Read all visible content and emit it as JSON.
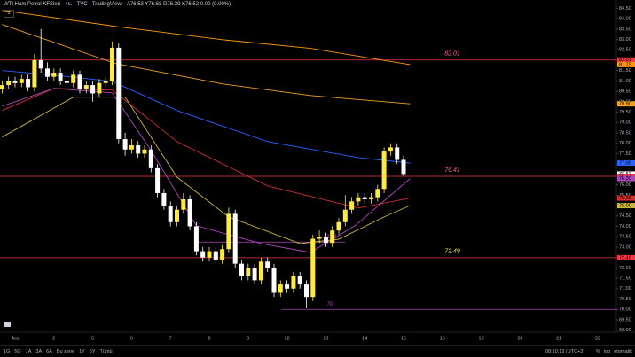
{
  "header": {
    "title": "WTI Ham Petrol KFSleri · 4s. · TVC · TradingView",
    "ohlc": "A76.53 Y76.68 D76.39 K76.52 0.00 (0.00%)",
    "badge": "3"
  },
  "chart_data": {
    "type": "candlestick",
    "categories": [
      null,
      null,
      "Ara",
      null,
      null,
      null,
      null,
      null,
      "2",
      null,
      null,
      null,
      null,
      null,
      "5",
      null,
      null,
      null,
      null,
      null,
      "6",
      null,
      null,
      null,
      null,
      null,
      "7",
      null,
      null,
      null,
      null,
      null,
      "8",
      null,
      null,
      null,
      null,
      null,
      "9",
      null,
      null,
      null,
      null,
      null,
      "12",
      null,
      null,
      null,
      null,
      null,
      "13",
      null,
      null,
      null,
      null,
      null,
      "14",
      null,
      null,
      null,
      null,
      null,
      "15",
      null,
      null,
      null,
      null,
      null,
      "16",
      null,
      null,
      null,
      null,
      null,
      "19",
      null,
      null,
      null,
      null,
      null,
      "20",
      null,
      null,
      null,
      null,
      null,
      "21",
      null,
      null,
      null,
      null,
      null,
      "22"
    ],
    "open": [
      80.6,
      80.8,
      81.0,
      80.9,
      81.1,
      80.7,
      82.0,
      81.6,
      81.2,
      81.4,
      81.0,
      80.9,
      81.3,
      80.6,
      80.8,
      80.4,
      80.9,
      81.0,
      82.6,
      78.2,
      77.7,
      77.9,
      77.5,
      77.7,
      76.8,
      75.6,
      75.0,
      74.2,
      74.8,
      75.3,
      74.0,
      72.8,
      72.5,
      72.8,
      72.4,
      72.9,
      74.6,
      72.2,
      71.6,
      72.0,
      71.4,
      72.3,
      72.0,
      70.8,
      71.2,
      71.0,
      71.6,
      71.2,
      70.6,
      73.4,
      73.5,
      73.2,
      73.8,
      74.2,
      74.8,
      75.2,
      75.4,
      75.3,
      75.4,
      75.8,
      77.6,
      77.8,
      77.2,
      null,
      null,
      null,
      null,
      null,
      null,
      null,
      null,
      null,
      null,
      null,
      null,
      null,
      null,
      null,
      null,
      null,
      null,
      null,
      null,
      null,
      null,
      null,
      null,
      null,
      null,
      null,
      null,
      null,
      null
    ],
    "high": [
      81.0,
      81.2,
      81.2,
      81.3,
      81.3,
      82.3,
      83.5,
      81.9,
      81.6,
      81.6,
      81.2,
      81.5,
      81.5,
      81.0,
      81.0,
      81.1,
      81.2,
      82.9,
      82.8,
      78.5,
      78.2,
      78.1,
      77.9,
      77.9,
      77.0,
      75.8,
      75.2,
      75.0,
      75.6,
      75.5,
      74.2,
      73.0,
      73.0,
      73.0,
      73.1,
      74.9,
      74.8,
      72.4,
      72.2,
      72.2,
      72.5,
      72.5,
      72.2,
      71.4,
      71.4,
      71.8,
      71.8,
      71.4,
      73.6,
      73.8,
      73.7,
      74.0,
      74.4,
      75.5,
      75.4,
      75.6,
      75.6,
      75.6,
      76.0,
      77.8,
      78.0,
      78.0,
      77.4,
      null,
      null,
      null,
      null,
      null,
      null,
      null,
      null,
      null,
      null,
      null,
      null,
      null,
      null,
      null,
      null,
      null,
      null,
      null,
      null,
      null,
      null,
      null,
      null,
      null,
      null,
      null,
      null,
      null,
      null
    ],
    "low": [
      80.4,
      80.6,
      80.7,
      80.7,
      80.5,
      80.5,
      81.4,
      81.0,
      81.0,
      80.8,
      80.7,
      80.7,
      80.4,
      80.4,
      80.0,
      80.2,
      80.7,
      80.8,
      78.0,
      77.4,
      77.5,
      77.3,
      77.3,
      76.6,
      75.4,
      74.8,
      74.0,
      74.0,
      74.6,
      73.8,
      72.6,
      72.3,
      72.3,
      72.2,
      72.2,
      72.7,
      72.0,
      71.4,
      71.4,
      71.2,
      71.2,
      71.8,
      70.6,
      70.6,
      70.8,
      70.8,
      71.0,
      70.05,
      70.4,
      73.2,
      73.0,
      73.0,
      73.6,
      74.0,
      74.6,
      75.0,
      75.1,
      75.1,
      75.2,
      75.6,
      77.4,
      77.0,
      76.4,
      null,
      null,
      null,
      null,
      null,
      null,
      null,
      null,
      null,
      null,
      null,
      null,
      null,
      null,
      null,
      null,
      null,
      null,
      null,
      null,
      null,
      null,
      null,
      null,
      null,
      null,
      null,
      null,
      null,
      null
    ],
    "close": [
      80.8,
      81.0,
      80.9,
      81.1,
      80.7,
      82.0,
      81.6,
      81.2,
      81.4,
      81.0,
      80.9,
      81.3,
      80.6,
      80.8,
      80.4,
      80.9,
      81.0,
      82.6,
      78.2,
      77.7,
      77.9,
      77.5,
      77.7,
      76.8,
      75.6,
      75.0,
      74.2,
      74.8,
      75.3,
      74.0,
      72.8,
      72.5,
      72.8,
      72.4,
      72.9,
      74.6,
      72.2,
      71.6,
      72.0,
      71.4,
      72.3,
      72.0,
      70.8,
      71.2,
      71.0,
      71.6,
      71.2,
      70.6,
      73.4,
      73.5,
      73.2,
      73.8,
      74.2,
      74.8,
      75.2,
      75.4,
      75.3,
      75.4,
      75.8,
      77.6,
      77.8,
      77.2,
      76.52,
      null,
      null,
      null,
      null,
      null,
      null,
      null,
      null,
      null,
      null,
      null,
      null,
      null,
      null,
      null,
      null,
      null,
      null,
      null,
      null,
      null,
      null,
      null,
      null,
      null,
      null,
      null,
      null,
      null,
      null
    ],
    "up_color": "#ffeb3b",
    "down_color": "#ffffff",
    "ylim": [
      68.9,
      84.9
    ],
    "yticks": [
      {
        "value": 69,
        "label": "69.00"
      },
      {
        "value": 69.5,
        "label": "69.50"
      },
      {
        "value": 70,
        "label": "70.00"
      },
      {
        "value": 70.5,
        "label": "70.50"
      },
      {
        "value": 71,
        "label": "71.00"
      },
      {
        "value": 71.5,
        "label": "71.50"
      },
      {
        "value": 72,
        "label": "72.00"
      },
      {
        "value": 72.5,
        "label": "72.50"
      },
      {
        "value": 73,
        "label": "73.00"
      },
      {
        "value": 73.5,
        "label": "73.50"
      },
      {
        "value": 74,
        "label": "74.00"
      },
      {
        "value": 74.5,
        "label": "74.50"
      },
      {
        "value": 75,
        "label": "75.00"
      },
      {
        "value": 75.5,
        "label": "75.50"
      },
      {
        "value": 76,
        "label": "76.00"
      },
      {
        "value": 76.5,
        "label": "76.50"
      },
      {
        "value": 77,
        "label": "77.00"
      },
      {
        "value": 77.5,
        "label": "77.50"
      },
      {
        "value": 78,
        "label": "78.00"
      },
      {
        "value": 78.5,
        "label": "78.50"
      },
      {
        "value": 79,
        "label": "79.00"
      },
      {
        "value": 79.5,
        "label": "79.50"
      },
      {
        "value": 80,
        "label": "80.00"
      },
      {
        "value": 80.5,
        "label": "80.50"
      },
      {
        "value": 81,
        "label": "81.00"
      },
      {
        "value": 81.5,
        "label": "81.50"
      },
      {
        "value": 82,
        "label": "82.00"
      },
      {
        "value": 82.5,
        "label": "82.50"
      },
      {
        "value": 83,
        "label": "83.00"
      },
      {
        "value": 83.5,
        "label": "83.50"
      },
      {
        "value": 84,
        "label": "84.00"
      },
      {
        "value": 84.5,
        "label": "84.50"
      }
    ],
    "grid": false,
    "lines": [
      {
        "color": "#ff9800",
        "x": [
          0,
          17.5,
          34,
          47.6,
          63
        ],
        "values": [
          84.4,
          83.63,
          82.99,
          82.57,
          81.79
        ]
      },
      {
        "color": "#f0a020",
        "x": [
          0,
          17.5,
          34,
          47.6,
          63
        ],
        "values": [
          83.72,
          81.84,
          80.86,
          80.3,
          79.9
        ]
      },
      {
        "color": "#2962ff",
        "x": [
          0,
          8,
          17,
          27,
          41,
          55,
          63
        ],
        "values": [
          81.5,
          81.28,
          80.98,
          79.58,
          78.08,
          77.31,
          77.05
        ]
      },
      {
        "color": "#d32f2f",
        "x": [
          0,
          8,
          17,
          27,
          41,
          55,
          63
        ],
        "values": [
          79.58,
          80.64,
          80.56,
          78.08,
          75.95,
          74.88,
          75.36
        ]
      },
      {
        "color": "#ab47bc",
        "x": [
          0,
          8,
          17,
          23,
          30,
          40,
          47.6,
          54.5,
          63
        ],
        "values": [
          79.79,
          80.64,
          80.43,
          77.65,
          74.03,
          73.17,
          72.74,
          74.03,
          76.3
        ]
      },
      {
        "color": "#c8b43a",
        "x": [
          0,
          11,
          19,
          27,
          35,
          46,
          52,
          59,
          63
        ],
        "values": [
          78.3,
          80.22,
          80.22,
          76.37,
          74.45,
          73.17,
          73.38,
          74.45,
          75.0
        ]
      }
    ],
    "levels": [
      {
        "value": 82.01,
        "color": "#f23645",
        "text_color": "#f06292"
      },
      {
        "value": 76.41,
        "color": "#f23645",
        "text_color": "#f06292"
      },
      {
        "value": 72.49,
        "color": "#f23645",
        "text_color": "#ffeb3b"
      }
    ],
    "drawn_levels": [
      {
        "value": 73.24,
        "from": 30,
        "to": 53,
        "color": "#ab47bc"
      },
      {
        "value": 70,
        "from": 43.2,
        "to": 95,
        "color": "#ab47bc"
      }
    ],
    "price_tags": [
      {
        "price": 82.01,
        "color": "#f23645"
      },
      {
        "price": 81.79,
        "color": "#ff9800"
      },
      {
        "price": 79.9,
        "label": "79.90",
        "color": "#f0a020"
      },
      {
        "price": 77.05,
        "color": "#2962ff"
      },
      {
        "price": 76.52,
        "color": "#ffffff"
      },
      {
        "price": 76.41,
        "color": "#f23645"
      },
      {
        "price": 76.3,
        "label": "76.30",
        "color": "#ab47bc"
      },
      {
        "price": 75.36,
        "color": "#d32f2f"
      },
      {
        "price": 75,
        "label": "75.00",
        "color": "#c8b43a"
      },
      {
        "price": 72.49,
        "color": "#f23645"
      }
    ]
  },
  "toolbar": {
    "ranges": [
      "1G",
      "5G",
      "1A",
      "3A",
      "6A",
      "Bu sene",
      "1Y",
      "5Y",
      "Tümü"
    ],
    "time": "08:10:12 (UTC+3)",
    "options": [
      "%",
      "log",
      "otomatik"
    ]
  }
}
